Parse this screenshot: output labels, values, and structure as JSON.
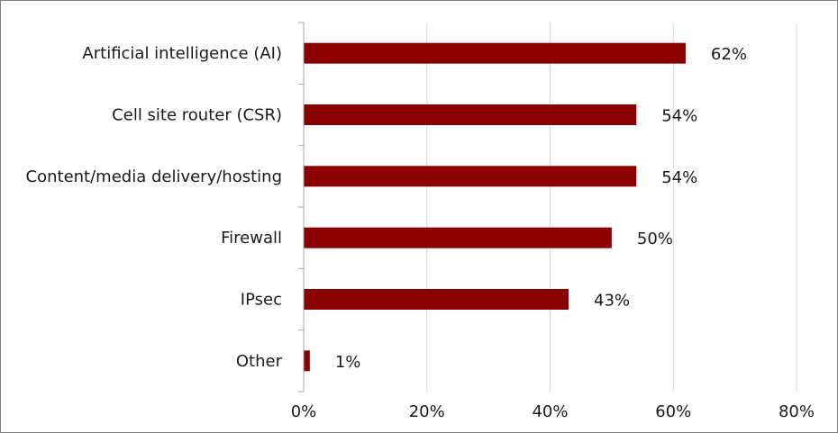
{
  "chart_data": {
    "type": "bar",
    "orientation": "horizontal",
    "categories": [
      "Artificial intelligence (AI)",
      "Cell site router (CSR)",
      "Content/media delivery/hosting",
      "Firewall",
      "IPsec",
      "Other"
    ],
    "values": [
      62,
      54,
      54,
      50,
      43,
      1
    ],
    "value_labels": [
      "62%",
      "54%",
      "54%",
      "50%",
      "43%",
      "1%"
    ],
    "x_ticks": [
      0,
      20,
      40,
      60,
      80
    ],
    "x_tick_labels": [
      "0%",
      "20%",
      "40%",
      "60%",
      "80%"
    ],
    "xlim": [
      0,
      80
    ],
    "grid": "vertical",
    "legend": "none",
    "bar_color": "#8b0000",
    "grid_color": "#d9d9d9",
    "axis_color": "#a6a6a6"
  }
}
